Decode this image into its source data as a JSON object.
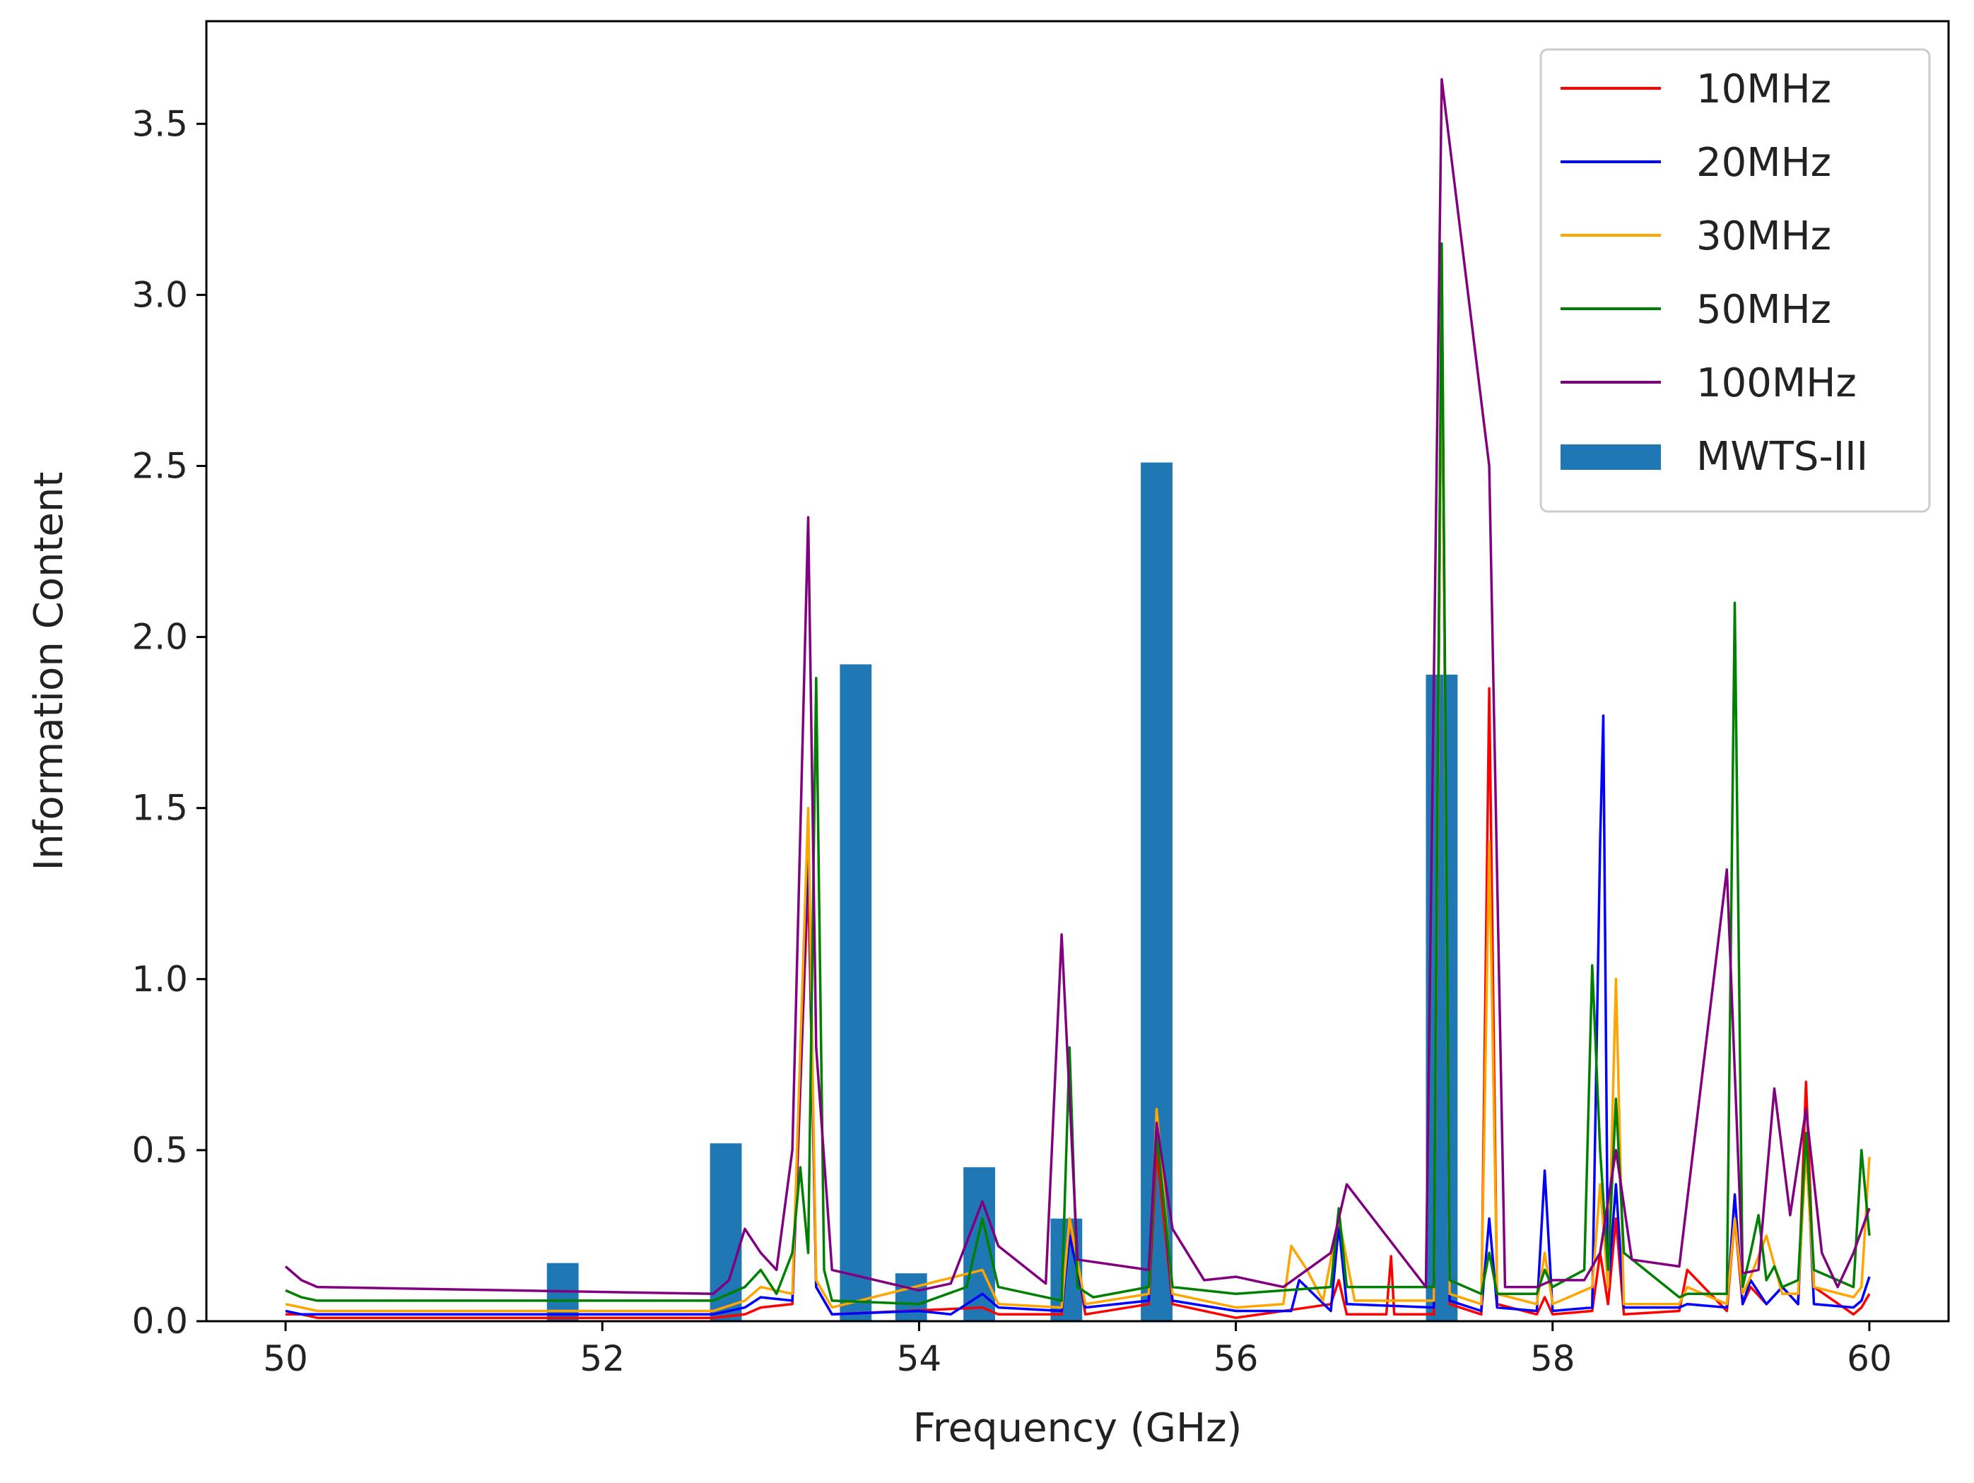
{
  "chart_data": {
    "type": "line",
    "title": "",
    "xlabel": "Frequency (GHz)",
    "ylabel": "Information Content",
    "xlim": [
      49.5,
      60.5
    ],
    "ylim": [
      0,
      3.8
    ],
    "xticks": [
      50,
      52,
      54,
      56,
      58,
      60
    ],
    "xtick_labels": [
      "50",
      "52",
      "54",
      "56",
      "58",
      "60"
    ],
    "yticks": [
      0.0,
      0.5,
      1.0,
      1.5,
      2.0,
      2.5,
      3.0,
      3.5
    ],
    "ytick_labels": [
      "0.0",
      "0.5",
      "1.0",
      "1.5",
      "2.0",
      "2.5",
      "3.0",
      "3.5"
    ],
    "legend_position": "top-right",
    "series": [
      {
        "name": "10MHz",
        "color": "#ff0000",
        "x": [
          50.0,
          50.1,
          50.2,
          52.7,
          52.9,
          53.0,
          53.2,
          53.3,
          53.35,
          53.45,
          54.4,
          54.5,
          54.9,
          54.95,
          55.05,
          55.45,
          55.5,
          55.6,
          56.0,
          56.6,
          56.65,
          56.7,
          56.95,
          56.98,
          57.0,
          57.25,
          57.3,
          57.35,
          57.55,
          57.6,
          57.65,
          57.9,
          57.95,
          58.0,
          58.25,
          58.3,
          58.35,
          58.4,
          58.45,
          58.8,
          58.85,
          59.1,
          59.15,
          59.2,
          59.25,
          59.35,
          59.45,
          59.55,
          59.6,
          59.65,
          59.9,
          59.95,
          60.0
        ],
        "y": [
          0.02,
          0.02,
          0.01,
          0.01,
          0.02,
          0.04,
          0.05,
          1.3,
          0.1,
          0.02,
          0.04,
          0.02,
          0.02,
          0.3,
          0.02,
          0.05,
          0.5,
          0.05,
          0.01,
          0.05,
          0.12,
          0.02,
          0.02,
          0.19,
          0.02,
          0.02,
          3.1,
          0.05,
          0.02,
          1.85,
          0.05,
          0.02,
          0.07,
          0.02,
          0.03,
          0.2,
          0.05,
          0.3,
          0.02,
          0.03,
          0.15,
          0.03,
          0.3,
          0.05,
          0.1,
          0.05,
          0.1,
          0.05,
          0.7,
          0.1,
          0.02,
          0.04,
          0.08
        ]
      },
      {
        "name": "20MHz",
        "color": "#0000ff",
        "x": [
          50.0,
          50.1,
          50.2,
          52.7,
          52.9,
          53.0,
          53.2,
          53.3,
          53.35,
          53.45,
          54.0,
          54.2,
          54.4,
          54.5,
          54.9,
          54.95,
          55.05,
          55.45,
          55.5,
          55.6,
          56.0,
          56.35,
          56.4,
          56.6,
          56.65,
          56.7,
          57.25,
          57.3,
          57.35,
          57.55,
          57.6,
          57.65,
          57.9,
          57.95,
          58.0,
          58.25,
          58.3,
          58.32,
          58.35,
          58.4,
          58.45,
          58.8,
          58.85,
          59.1,
          59.15,
          59.2,
          59.25,
          59.35,
          59.45,
          59.55,
          59.6,
          59.65,
          59.9,
          59.95,
          60.0
        ],
        "y": [
          0.03,
          0.02,
          0.02,
          0.02,
          0.04,
          0.07,
          0.06,
          1.4,
          0.1,
          0.02,
          0.03,
          0.02,
          0.08,
          0.04,
          0.03,
          0.25,
          0.04,
          0.06,
          0.6,
          0.06,
          0.03,
          0.03,
          0.12,
          0.03,
          0.28,
          0.05,
          0.04,
          3.0,
          0.06,
          0.03,
          0.3,
          0.04,
          0.03,
          0.44,
          0.03,
          0.04,
          1.4,
          1.77,
          0.1,
          0.4,
          0.04,
          0.04,
          0.05,
          0.04,
          0.37,
          0.05,
          0.12,
          0.05,
          0.1,
          0.05,
          0.55,
          0.05,
          0.04,
          0.06,
          0.13
        ]
      },
      {
        "name": "30MHz",
        "color": "#ffa500",
        "x": [
          50.0,
          50.1,
          50.2,
          52.7,
          52.9,
          53.0,
          53.2,
          53.3,
          53.35,
          53.45,
          54.4,
          54.5,
          54.9,
          54.95,
          55.05,
          55.45,
          55.5,
          55.6,
          56.0,
          56.3,
          56.35,
          56.45,
          56.55,
          56.65,
          56.75,
          57.25,
          57.3,
          57.35,
          57.55,
          57.6,
          57.65,
          57.9,
          57.95,
          58.0,
          58.25,
          58.3,
          58.35,
          58.4,
          58.45,
          58.8,
          58.85,
          59.1,
          59.15,
          59.2,
          59.25,
          59.35,
          59.45,
          59.55,
          59.6,
          59.65,
          59.9,
          59.95,
          60.0
        ],
        "y": [
          0.05,
          0.04,
          0.03,
          0.03,
          0.06,
          0.1,
          0.08,
          1.5,
          0.12,
          0.04,
          0.15,
          0.05,
          0.04,
          0.3,
          0.05,
          0.08,
          0.62,
          0.08,
          0.04,
          0.05,
          0.22,
          0.15,
          0.06,
          0.3,
          0.06,
          0.06,
          3.0,
          0.08,
          0.05,
          1.4,
          0.08,
          0.05,
          0.2,
          0.05,
          0.1,
          0.4,
          0.1,
          1.0,
          0.05,
          0.05,
          0.1,
          0.05,
          0.3,
          0.08,
          0.13,
          0.25,
          0.08,
          0.08,
          0.5,
          0.1,
          0.07,
          0.1,
          0.48
        ]
      },
      {
        "name": "50MHz",
        "color": "#008000",
        "x": [
          50.0,
          50.1,
          50.2,
          52.7,
          52.9,
          53.0,
          53.1,
          53.2,
          53.25,
          53.3,
          53.35,
          53.4,
          53.45,
          54.0,
          54.3,
          54.4,
          54.5,
          54.9,
          54.95,
          55.0,
          55.1,
          55.45,
          55.5,
          55.6,
          56.0,
          56.6,
          56.65,
          56.7,
          57.25,
          57.3,
          57.35,
          57.55,
          57.6,
          57.65,
          57.9,
          57.95,
          58.0,
          58.2,
          58.25,
          58.3,
          58.35,
          58.4,
          58.45,
          58.8,
          58.85,
          59.1,
          59.15,
          59.2,
          59.25,
          59.3,
          59.35,
          59.4,
          59.45,
          59.55,
          59.6,
          59.65,
          59.9,
          59.95,
          60.0
        ],
        "y": [
          0.09,
          0.07,
          0.06,
          0.06,
          0.1,
          0.15,
          0.08,
          0.2,
          0.45,
          0.2,
          1.88,
          0.15,
          0.06,
          0.05,
          0.1,
          0.3,
          0.1,
          0.06,
          0.8,
          0.1,
          0.07,
          0.1,
          0.55,
          0.1,
          0.08,
          0.1,
          0.33,
          0.1,
          0.1,
          3.15,
          0.12,
          0.08,
          0.2,
          0.08,
          0.08,
          0.15,
          0.1,
          0.15,
          1.04,
          0.5,
          0.15,
          0.65,
          0.2,
          0.07,
          0.08,
          0.08,
          2.1,
          0.1,
          0.2,
          0.31,
          0.12,
          0.16,
          0.1,
          0.12,
          0.55,
          0.15,
          0.1,
          0.5,
          0.25
        ]
      },
      {
        "name": "100MHz",
        "color": "#800080",
        "x": [
          50.0,
          50.1,
          50.2,
          52.7,
          52.8,
          52.9,
          53.0,
          53.1,
          53.2,
          53.3,
          53.35,
          53.45,
          54.0,
          54.2,
          54.4,
          54.5,
          54.8,
          54.9,
          55.0,
          55.45,
          55.5,
          55.6,
          55.8,
          56.0,
          56.3,
          56.6,
          56.7,
          57.2,
          57.3,
          57.6,
          57.7,
          57.9,
          58.0,
          58.2,
          58.3,
          58.4,
          58.5,
          58.8,
          59.1,
          59.2,
          59.3,
          59.4,
          59.5,
          59.6,
          59.7,
          59.8,
          59.9,
          60.0
        ],
        "y": [
          0.16,
          0.12,
          0.1,
          0.08,
          0.12,
          0.27,
          0.2,
          0.15,
          0.5,
          2.35,
          0.8,
          0.15,
          0.09,
          0.11,
          0.35,
          0.22,
          0.11,
          1.13,
          0.18,
          0.15,
          0.58,
          0.27,
          0.12,
          0.13,
          0.1,
          0.2,
          0.4,
          0.1,
          3.63,
          2.5,
          0.1,
          0.1,
          0.12,
          0.12,
          0.2,
          0.5,
          0.18,
          0.16,
          1.32,
          0.14,
          0.15,
          0.68,
          0.31,
          0.62,
          0.2,
          0.1,
          0.2,
          0.33
        ]
      }
    ],
    "bars": {
      "name": "MWTS-III",
      "color": "#1f77b4",
      "width": 0.2,
      "x": [
        51.75,
        52.78,
        53.6,
        53.95,
        54.38,
        54.93,
        55.5,
        57.3
      ],
      "values": [
        0.17,
        0.52,
        1.92,
        0.14,
        0.45,
        0.3,
        2.51,
        1.89
      ]
    }
  }
}
